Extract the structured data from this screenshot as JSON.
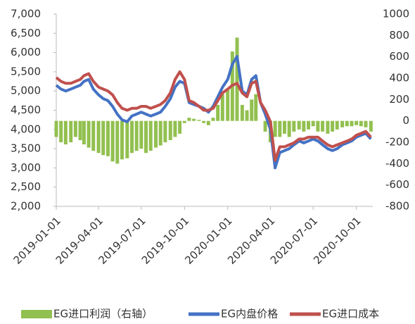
{
  "chart_data": {
    "type": "line",
    "x": [
      "2019-01-01",
      "2019-01-11",
      "2019-01-21",
      "2019-02-01",
      "2019-02-11",
      "2019-02-21",
      "2019-03-01",
      "2019-03-11",
      "2019-03-21",
      "2019-04-01",
      "2019-04-11",
      "2019-04-21",
      "2019-05-01",
      "2019-05-11",
      "2019-05-21",
      "2019-06-01",
      "2019-06-11",
      "2019-06-21",
      "2019-07-01",
      "2019-07-11",
      "2019-07-21",
      "2019-08-01",
      "2019-08-11",
      "2019-08-21",
      "2019-09-01",
      "2019-09-11",
      "2019-09-21",
      "2019-10-01",
      "2019-10-11",
      "2019-10-21",
      "2019-11-01",
      "2019-11-11",
      "2019-11-21",
      "2019-12-01",
      "2019-12-11",
      "2019-12-21",
      "2020-01-01",
      "2020-01-11",
      "2020-01-21",
      "2020-02-01",
      "2020-02-11",
      "2020-02-21",
      "2020-03-01",
      "2020-03-11",
      "2020-03-21",
      "2020-04-01",
      "2020-04-11",
      "2020-04-21",
      "2020-05-01",
      "2020-05-11",
      "2020-05-21",
      "2020-06-01",
      "2020-06-11",
      "2020-06-21",
      "2020-07-01",
      "2020-07-11",
      "2020-07-21",
      "2020-08-01",
      "2020-08-11",
      "2020-08-21",
      "2020-09-01",
      "2020-09-11",
      "2020-09-21",
      "2020-10-01",
      "2020-10-11",
      "2020-10-21",
      "2020-11-01"
    ],
    "xlim": [
      "2019-01-01",
      "2020-11-05"
    ],
    "xticks": [
      "2019-01-01",
      "2019-04-01",
      "2019-07-01",
      "2019-10-01",
      "2020-01-01",
      "2020-04-01",
      "2020-07-01",
      "2020-10-01"
    ],
    "ylim": [
      2000,
      7000
    ],
    "yticks": [
      {
        "value": 2000,
        "label": "2,000"
      },
      {
        "value": 2500,
        "label": "2,500"
      },
      {
        "value": 3000,
        "label": "3,000"
      },
      {
        "value": 3500,
        "label": "3,500"
      },
      {
        "value": 4000,
        "label": "4,000"
      },
      {
        "value": 4500,
        "label": "4,500"
      },
      {
        "value": 5000,
        "label": "5,000"
      },
      {
        "value": 5500,
        "label": "5,500"
      },
      {
        "value": 6000,
        "label": "6,000"
      },
      {
        "value": 6500,
        "label": "6,500"
      },
      {
        "value": 7000,
        "label": "7,000"
      }
    ],
    "y2lim": [
      -800,
      1000
    ],
    "y2ticks": [
      -800,
      -600,
      -400,
      -200,
      0,
      200,
      400,
      600,
      800,
      1000
    ],
    "series": [
      {
        "name": "EG进口利润（右轴）",
        "type": "bar",
        "axis": "y2",
        "color": "#92c050",
        "values": [
          -150,
          -200,
          -220,
          -200,
          -150,
          -180,
          -220,
          -250,
          -280,
          -300,
          -320,
          -330,
          -380,
          -400,
          -360,
          -350,
          -300,
          -280,
          -260,
          -300,
          -280,
          -250,
          -230,
          -200,
          -180,
          -150,
          -120,
          -20,
          30,
          20,
          10,
          -20,
          -40,
          30,
          150,
          250,
          300,
          650,
          780,
          150,
          100,
          200,
          250,
          0,
          -100,
          -200,
          -150,
          -150,
          -120,
          -150,
          -100,
          -80,
          -100,
          -80,
          -50,
          -100,
          -100,
          -120,
          -100,
          -80,
          -60,
          -50,
          -50,
          -40,
          -50,
          -60,
          -100
        ]
      },
      {
        "name": "EG内盘价格",
        "type": "line",
        "color": "#4472c4",
        "values": [
          5150,
          5050,
          5000,
          5050,
          5100,
          5150,
          5250,
          5300,
          5050,
          4900,
          4800,
          4750,
          4600,
          4400,
          4250,
          4200,
          4350,
          4400,
          4450,
          4400,
          4350,
          4400,
          4450,
          4600,
          4800,
          5100,
          5250,
          5200,
          4700,
          4650,
          4600,
          4550,
          4450,
          4600,
          4850,
          5100,
          5300,
          5700,
          5900,
          5000,
          4900,
          5300,
          5400,
          4700,
          4400,
          4000,
          3000,
          3400,
          3450,
          3500,
          3600,
          3700,
          3650,
          3700,
          3750,
          3700,
          3600,
          3500,
          3450,
          3500,
          3600,
          3650,
          3700,
          3800,
          3850,
          3900,
          3750
        ]
      },
      {
        "name": "EG进口成本",
        "type": "line",
        "color": "#c0504d",
        "values": [
          5350,
          5250,
          5200,
          5200,
          5250,
          5300,
          5400,
          5450,
          5250,
          5100,
          5050,
          5000,
          4900,
          4700,
          4550,
          4500,
          4550,
          4550,
          4600,
          4600,
          4550,
          4600,
          4650,
          4750,
          4950,
          5300,
          5500,
          5300,
          4750,
          4700,
          4600,
          4500,
          4500,
          4550,
          4750,
          4950,
          5050,
          5150,
          5200,
          4950,
          4850,
          5200,
          5250,
          4700,
          4500,
          4200,
          3200,
          3550,
          3550,
          3600,
          3650,
          3750,
          3750,
          3800,
          3800,
          3800,
          3700,
          3600,
          3550,
          3600,
          3650,
          3700,
          3750,
          3850,
          3900,
          3950,
          3800
        ]
      }
    ]
  }
}
